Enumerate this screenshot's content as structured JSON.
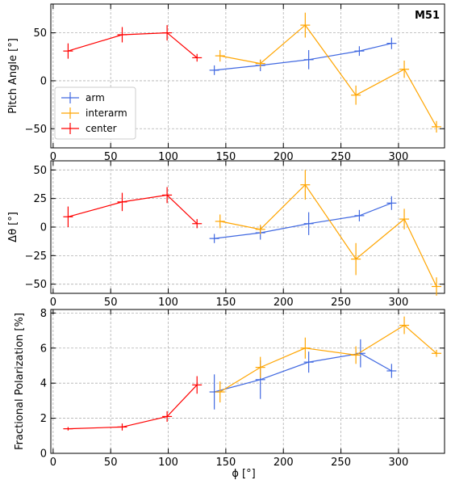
{
  "figure": {
    "annotation": "M51",
    "xlabel": "ϕ [°]"
  },
  "chart_data": [
    {
      "type": "line",
      "ylabel": "Pitch Angle [°]",
      "xlim": [
        -2,
        340
      ],
      "ylim": [
        -70,
        80
      ],
      "xticks": [
        0,
        50,
        100,
        150,
        200,
        250,
        300
      ],
      "yticks": [
        -50,
        0,
        50
      ],
      "grid": true,
      "legend": {
        "position": "lower-left",
        "entries": [
          "arm",
          "interarm",
          "center"
        ]
      },
      "series": [
        {
          "name": "arm",
          "color": "#4169e1",
          "x": [
            140,
            180,
            222,
            266,
            294
          ],
          "y": [
            11,
            16,
            22,
            31,
            39
          ],
          "err": [
            5,
            6,
            10,
            5,
            6
          ]
        },
        {
          "name": "interarm",
          "color": "#ffa500",
          "x": [
            145,
            180,
            219,
            263,
            305,
            333
          ],
          "y": [
            26,
            18,
            58,
            -15,
            12,
            -48
          ],
          "err": [
            6,
            4,
            13,
            10,
            9,
            6
          ]
        },
        {
          "name": "center",
          "color": "#ff0000",
          "x": [
            13,
            60,
            99,
            125
          ],
          "y": [
            31,
            48,
            50,
            24
          ],
          "err": [
            8,
            8,
            8,
            4
          ]
        }
      ]
    },
    {
      "type": "line",
      "ylabel": "Δθ [°]",
      "xlim": [
        -2,
        340
      ],
      "ylim": [
        -58,
        58
      ],
      "xticks": [
        0,
        50,
        100,
        150,
        200,
        250,
        300
      ],
      "yticks": [
        -50,
        -25,
        0,
        25,
        50
      ],
      "grid": true,
      "series": [
        {
          "name": "arm",
          "color": "#4169e1",
          "x": [
            140,
            180,
            222,
            266,
            294
          ],
          "y": [
            -10,
            -5,
            3,
            10,
            21
          ],
          "err": [
            4,
            6,
            10,
            5,
            6
          ]
        },
        {
          "name": "interarm",
          "color": "#ffa500",
          "x": [
            145,
            180,
            219,
            263,
            305,
            333
          ],
          "y": [
            5,
            -2,
            37,
            -28,
            7,
            -52
          ],
          "err": [
            6,
            4,
            13,
            14,
            9,
            8
          ]
        },
        {
          "name": "center",
          "color": "#ff0000",
          "x": [
            13,
            60,
            99,
            125
          ],
          "y": [
            9,
            22,
            28,
            3
          ],
          "err": [
            9,
            8,
            7,
            4
          ]
        }
      ]
    },
    {
      "type": "line",
      "ylabel": "Fractional Polarization [%]",
      "xlim": [
        -2,
        340
      ],
      "ylim": [
        0,
        8.2
      ],
      "xticks": [
        0,
        50,
        100,
        150,
        200,
        250,
        300
      ],
      "yticks": [
        0,
        2,
        4,
        6,
        8
      ],
      "grid": true,
      "series": [
        {
          "name": "arm",
          "color": "#4169e1",
          "x": [
            140,
            180,
            222,
            267,
            294
          ],
          "y": [
            3.5,
            4.2,
            5.2,
            5.7,
            4.7
          ],
          "err": [
            1.0,
            1.1,
            0.6,
            0.8,
            0.4
          ]
        },
        {
          "name": "interarm",
          "color": "#ffa500",
          "x": [
            145,
            180,
            219,
            263,
            305,
            333
          ],
          "y": [
            3.5,
            4.9,
            6.0,
            5.6,
            7.3,
            5.7
          ],
          "err": [
            0.6,
            0.6,
            0.6,
            0.5,
            0.5,
            0.2
          ]
        },
        {
          "name": "center",
          "color": "#ff0000",
          "x": [
            13,
            60,
            99,
            125
          ],
          "y": [
            1.4,
            1.5,
            2.1,
            3.9
          ],
          "err": [
            0.1,
            0.2,
            0.3,
            0.5
          ]
        }
      ]
    }
  ]
}
